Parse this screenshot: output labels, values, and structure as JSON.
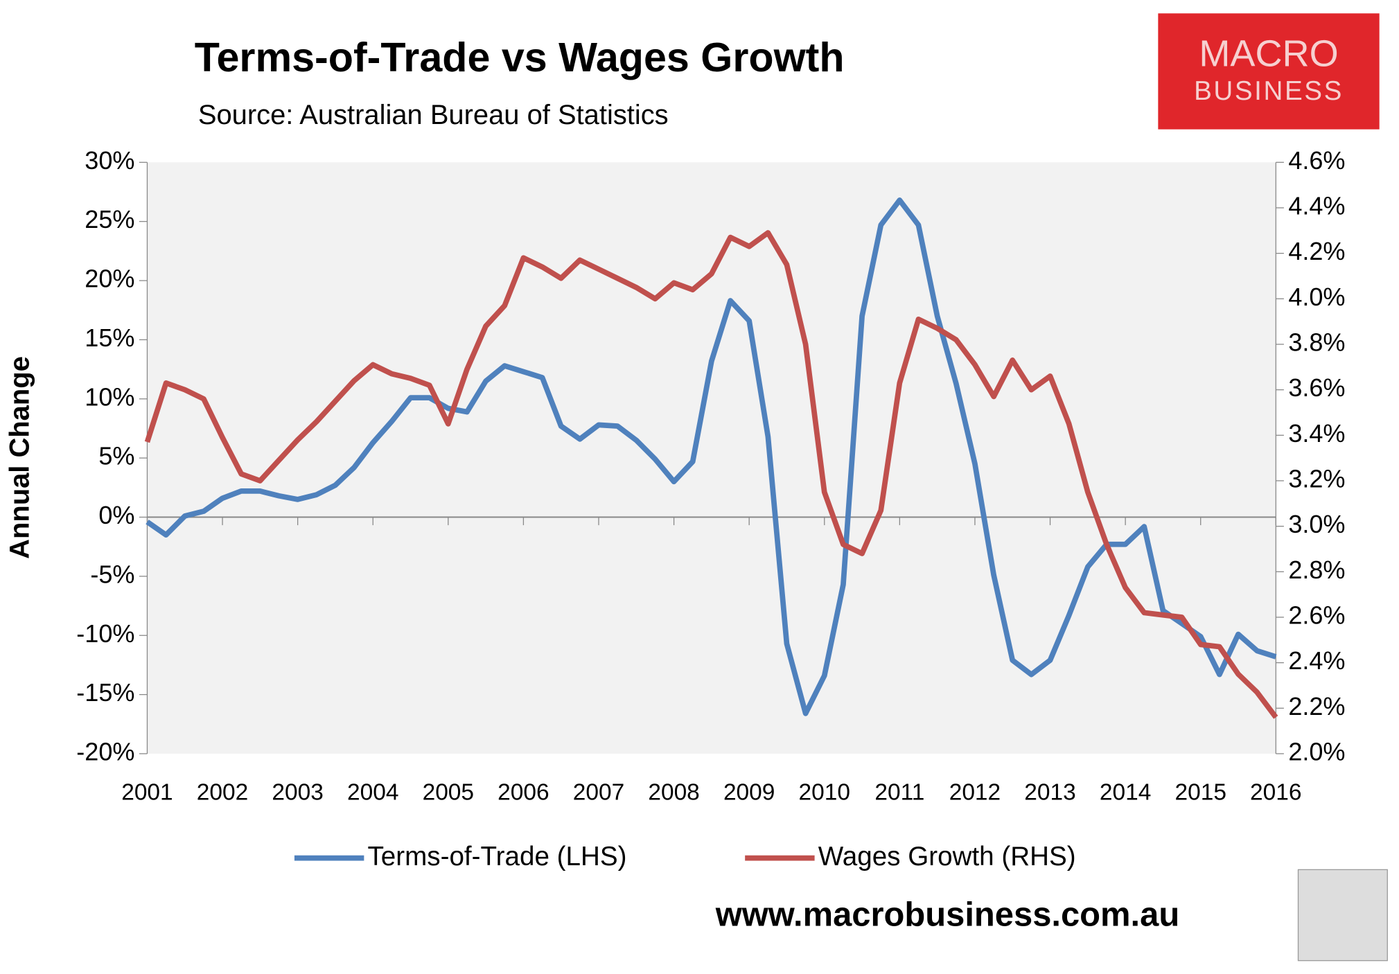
{
  "chart_data": {
    "type": "line",
    "title": "Terms-of-Trade vs Wages Growth",
    "subtitle": "Source: Australian Bureau of Statistics",
    "y_label": "Annual Change",
    "logo": [
      "MACRO",
      "BUSINESS"
    ],
    "website": "www.macrobusiness.com.au",
    "x": [
      2001,
      2001.25,
      2001.5,
      2001.75,
      2002,
      2002.25,
      2002.5,
      2002.75,
      2003,
      2003.25,
      2003.5,
      2003.75,
      2004,
      2004.25,
      2004.5,
      2004.75,
      2005,
      2005.25,
      2005.5,
      2005.75,
      2006,
      2006.25,
      2006.5,
      2006.75,
      2007,
      2007.25,
      2007.5,
      2007.75,
      2008,
      2008.25,
      2008.5,
      2008.75,
      2009,
      2009.25,
      2009.5,
      2009.75,
      2010,
      2010.25,
      2010.5,
      2010.75,
      2011,
      2011.25,
      2011.5,
      2011.75,
      2012,
      2012.25,
      2012.5,
      2012.75,
      2013,
      2013.25,
      2013.5,
      2013.75,
      2014,
      2014.25,
      2014.5,
      2014.75,
      2015,
      2015.25,
      2015.5,
      2015.75,
      2016
    ],
    "series": [
      {
        "name": "Terms-of-Trade (LHS)",
        "color": "#4f81bd",
        "axis": "y",
        "values": [
          -0.4,
          -1.5,
          0.1,
          0.5,
          1.6,
          2.2,
          2.2,
          1.8,
          1.5,
          1.9,
          2.7,
          4.2,
          6.3,
          8.1,
          10.1,
          10.1,
          9.2,
          8.9,
          11.5,
          12.8,
          12.3,
          11.8,
          7.7,
          6.6,
          7.8,
          7.7,
          6.5,
          4.9,
          3.0,
          4.7,
          13.2,
          18.3,
          16.6,
          6.8,
          -10.7,
          -16.6,
          -13.4,
          -5.7,
          17.0,
          24.7,
          26.8,
          24.7,
          17.0,
          11.3,
          4.5,
          -4.9,
          -12.1,
          -13.3,
          -12.1,
          -8.3,
          -4.2,
          -2.3,
          -2.3,
          -0.8,
          -7.9,
          -9.0,
          -10.1,
          -13.3,
          -9.9,
          -11.3,
          -11.8
        ]
      },
      {
        "name": "Wages Growth (RHS)",
        "color": "#c0504d",
        "axis": "y2",
        "values": [
          3.37,
          3.63,
          3.6,
          3.56,
          3.39,
          3.23,
          3.2,
          3.29,
          3.38,
          3.46,
          3.55,
          3.64,
          3.71,
          3.67,
          3.65,
          3.62,
          3.45,
          3.69,
          3.88,
          3.97,
          4.18,
          4.14,
          4.09,
          4.17,
          4.13,
          4.09,
          4.05,
          4.0,
          4.07,
          4.04,
          4.11,
          4.27,
          4.23,
          4.29,
          4.15,
          3.8,
          3.15,
          2.92,
          2.88,
          3.07,
          3.63,
          3.91,
          3.87,
          3.82,
          3.71,
          3.57,
          3.73,
          3.6,
          3.66,
          3.45,
          3.15,
          2.92,
          2.73,
          2.62,
          2.61,
          2.6,
          2.48,
          2.47,
          2.35,
          2.27,
          2.16
        ]
      }
    ],
    "xlim": [
      2001,
      2016
    ],
    "xticks": [
      2001,
      2002,
      2003,
      2004,
      2005,
      2006,
      2007,
      2008,
      2009,
      2010,
      2011,
      2012,
      2013,
      2014,
      2015,
      2016
    ],
    "ylim": [
      -20,
      30
    ],
    "yticks": [
      {
        "value": -20,
        "label": "-20%"
      },
      {
        "value": -15,
        "label": "-15%"
      },
      {
        "value": -10,
        "label": "-10%"
      },
      {
        "value": -5,
        "label": "-5%"
      },
      {
        "value": 0,
        "label": "0%"
      },
      {
        "value": 5,
        "label": "5%"
      },
      {
        "value": 10,
        "label": "10%"
      },
      {
        "value": 15,
        "label": "15%"
      },
      {
        "value": 20,
        "label": "20%"
      },
      {
        "value": 25,
        "label": "25%"
      },
      {
        "value": 30,
        "label": "30%"
      }
    ],
    "y2lim": [
      2.0,
      4.6
    ],
    "y2ticks": [
      {
        "value": 2.0,
        "label": "2.0%"
      },
      {
        "value": 2.2,
        "label": "2.2%"
      },
      {
        "value": 2.4,
        "label": "2.4%"
      },
      {
        "value": 2.6,
        "label": "2.6%"
      },
      {
        "value": 2.8,
        "label": "2.8%"
      },
      {
        "value": 3.0,
        "label": "3.0%"
      },
      {
        "value": 3.2,
        "label": "3.2%"
      },
      {
        "value": 3.4,
        "label": "3.4%"
      },
      {
        "value": 3.6,
        "label": "3.6%"
      },
      {
        "value": 3.8,
        "label": "3.8%"
      },
      {
        "value": 4.0,
        "label": "4.0%"
      },
      {
        "value": 4.2,
        "label": "4.2%"
      },
      {
        "value": 4.4,
        "label": "4.4%"
      },
      {
        "value": 4.6,
        "label": "4.6%"
      }
    ],
    "legend": "bottom"
  }
}
